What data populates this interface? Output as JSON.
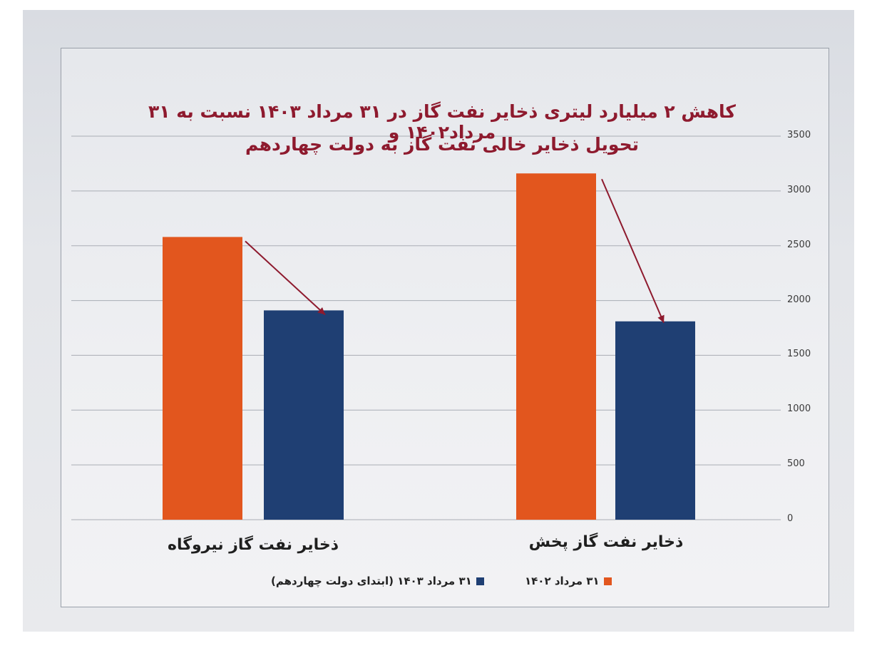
{
  "chart_data": {
    "type": "bar",
    "title_line1": "کاهش ۲ میلیارد لیتری ذخایر نفت گاز در ۳۱ مرداد ۱۴۰۳ نسبت به ۳۱ مرداد۱۴۰۲ و",
    "title_line2": "تحویل ذخایر خالی نفت گاز به دولت چهاردهم",
    "categories": [
      "ذخایر نفت گاز نیروگاه",
      "ذخایر نفت گاز پخش"
    ],
    "series": [
      {
        "name": "۳۱ مرداد ۱۴۰۲",
        "values": [
          2580,
          3160
        ],
        "color": "#e2561e"
      },
      {
        "name": "۳۱ مرداد ۱۴۰۳ (ابتدای دولت چهاردهم)",
        "values": [
          1910,
          1810
        ],
        "color": "#1f3f73"
      }
    ],
    "yticks": [
      "0",
      "500",
      "1000",
      "1500",
      "2000",
      "2500",
      "3000",
      "3500"
    ],
    "ylim": [
      0,
      3500
    ],
    "grid": true,
    "y_axis_side": "right",
    "legend_position": "bottom",
    "annotation_color": "#8e1a2e"
  }
}
